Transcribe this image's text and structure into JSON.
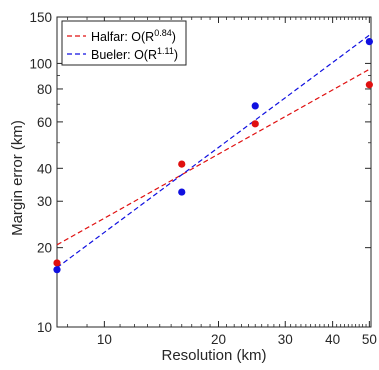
{
  "chart_data": {
    "type": "scatter",
    "xscale": "log",
    "yscale": "log",
    "xlim": [
      7.5,
      50.5
    ],
    "ylim": [
      10,
      150
    ],
    "xlabel": "Resolution (km)",
    "ylabel": "Margin error (km)",
    "xticks": [
      {
        "value": 10,
        "label": "10"
      },
      {
        "value": 20,
        "label": "20"
      },
      {
        "value": 30,
        "label": "30"
      },
      {
        "value": 40,
        "label": "40"
      },
      {
        "value": 50,
        "label": "50"
      }
    ],
    "yticks": [
      {
        "value": 10,
        "label": "10"
      },
      {
        "value": 20,
        "label": "20"
      },
      {
        "value": 30,
        "label": "30"
      },
      {
        "value": 40,
        "label": "40"
      },
      {
        "value": 60,
        "label": "60"
      },
      {
        "value": 80,
        "label": "80"
      },
      {
        "value": 100,
        "label": "100"
      },
      {
        "value": 150,
        "label": "150"
      }
    ],
    "grid": false,
    "legend_position": "top-left",
    "series": [
      {
        "name": "Halfar",
        "exponent": "0.84",
        "color": "#e01010",
        "points": [
          {
            "x": 7.5,
            "y": 17.5
          },
          {
            "x": 16,
            "y": 41.5
          },
          {
            "x": 25,
            "y": 59
          },
          {
            "x": 50,
            "y": 83
          }
        ],
        "fit": [
          {
            "x": 7.5,
            "y": 20.5
          },
          {
            "x": 50,
            "y": 95
          }
        ]
      },
      {
        "name": "Bueler",
        "exponent": "1.11",
        "color": "#1010e0",
        "points": [
          {
            "x": 7.5,
            "y": 16.5
          },
          {
            "x": 16,
            "y": 32.5
          },
          {
            "x": 25,
            "y": 69
          },
          {
            "x": 50,
            "y": 121
          }
        ],
        "fit": [
          {
            "x": 7.5,
            "y": 16.8
          },
          {
            "x": 50,
            "y": 128
          }
        ]
      }
    ]
  },
  "legend": {
    "halfar_prefix": "Halfar: O(R",
    "halfar_exp": "0.84",
    "halfar_suffix": ")",
    "bueler_prefix": "Bueler: O(R",
    "bueler_exp": "1.11",
    "bueler_suffix": ")"
  }
}
